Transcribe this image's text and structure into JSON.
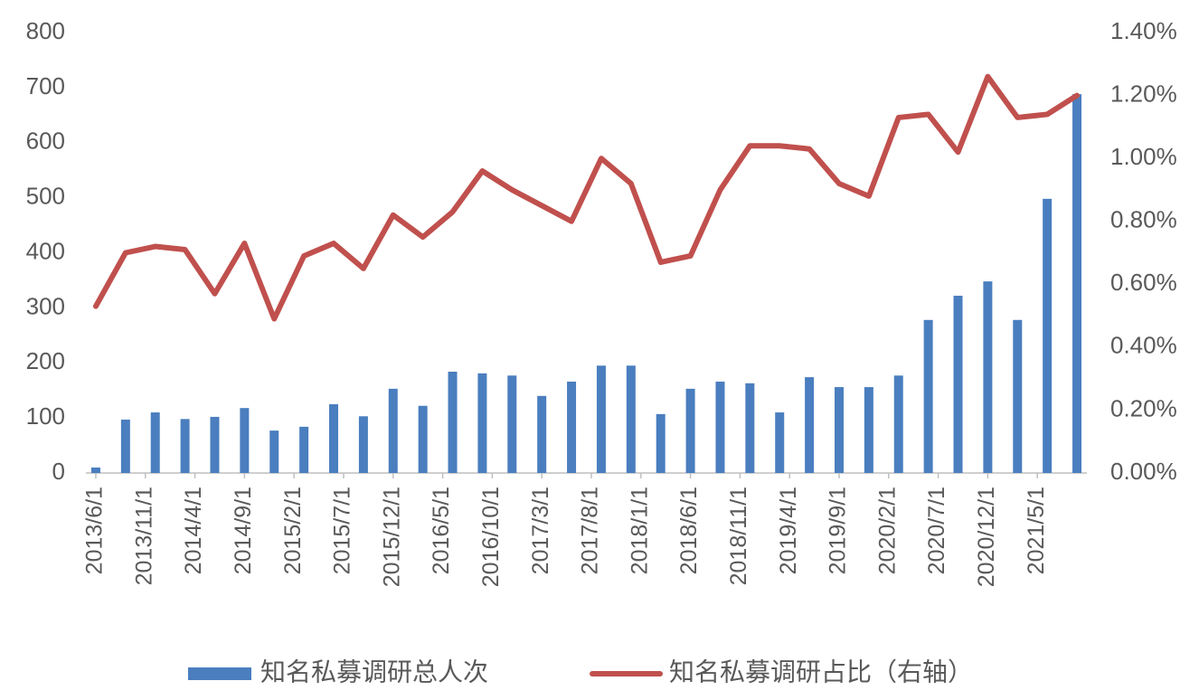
{
  "chart_data": {
    "type": "bar-line",
    "x": [
      "2013/6/1",
      "2013/9/1",
      "2013/12/1",
      "2014/3/1",
      "2014/6/1",
      "2014/9/1",
      "2014/12/1",
      "2015/3/1",
      "2015/6/1",
      "2015/9/1",
      "2015/12/1",
      "2016/3/1",
      "2016/6/1",
      "2016/9/1",
      "2016/12/1",
      "2017/3/1",
      "2017/6/1",
      "2017/9/1",
      "2017/12/1",
      "2018/3/1",
      "2018/6/1",
      "2018/9/1",
      "2018/12/1",
      "2019/3/1",
      "2019/6/1",
      "2019/9/1",
      "2019/12/1",
      "2020/3/1",
      "2020/6/1",
      "2020/9/1",
      "2020/12/1",
      "2021/3/1",
      "2021/6/1",
      "2021/9/1"
    ],
    "series": [
      {
        "name": "知名私募调研总人次",
        "type": "bar",
        "axis": "y",
        "color": "#4a7ebf",
        "values": [
          10,
          97,
          110,
          98,
          102,
          118,
          77,
          84,
          125,
          103,
          153,
          122,
          184,
          181,
          177,
          140,
          166,
          195,
          195,
          107,
          153,
          166,
          163,
          110,
          174,
          156,
          156,
          177,
          278,
          322,
          348,
          278,
          498,
          688
        ]
      },
      {
        "name": "知名私募调研占比（右轴）",
        "type": "line",
        "axis": "y2",
        "color": "#c0504d",
        "values": [
          0.53,
          0.7,
          0.72,
          0.71,
          0.57,
          0.73,
          0.49,
          0.69,
          0.73,
          0.65,
          0.82,
          0.75,
          0.83,
          0.96,
          0.9,
          0.85,
          0.8,
          1.0,
          0.92,
          0.67,
          0.69,
          0.9,
          1.04,
          1.04,
          1.03,
          0.92,
          0.88,
          1.13,
          1.14,
          1.02,
          1.26,
          1.13,
          1.14,
          1.2
        ]
      }
    ],
    "xlim": [
      "2013/5/1",
      "2021/10/1"
    ],
    "xticks": [
      "2013/6/1",
      "2013/11/1",
      "2014/4/1",
      "2014/9/1",
      "2015/2/1",
      "2015/7/1",
      "2015/12/1",
      "2016/5/1",
      "2016/10/1",
      "2017/3/1",
      "2017/8/1",
      "2018/1/1",
      "2018/6/1",
      "2018/11/1",
      "2019/4/1",
      "2019/9/1",
      "2020/2/1",
      "2020/7/1",
      "2020/12/1",
      "2021/5/1"
    ],
    "ylim": [
      0,
      800
    ],
    "yticks": [
      0,
      100,
      200,
      300,
      400,
      500,
      600,
      700,
      800
    ],
    "y2lim": [
      0,
      1.4
    ],
    "y2ticks": [
      {
        "value": 0,
        "label": "0.00%"
      },
      {
        "value": 0.2,
        "label": "0.20%"
      },
      {
        "value": 0.4,
        "label": "0.40%"
      },
      {
        "value": 0.6,
        "label": "0.60%"
      },
      {
        "value": 0.8,
        "label": "0.80%"
      },
      {
        "value": 1.0,
        "label": "1.00%"
      },
      {
        "value": 1.2,
        "label": "1.20%"
      },
      {
        "value": 1.4,
        "label": "1.40%"
      }
    ],
    "legend": "bottom"
  }
}
